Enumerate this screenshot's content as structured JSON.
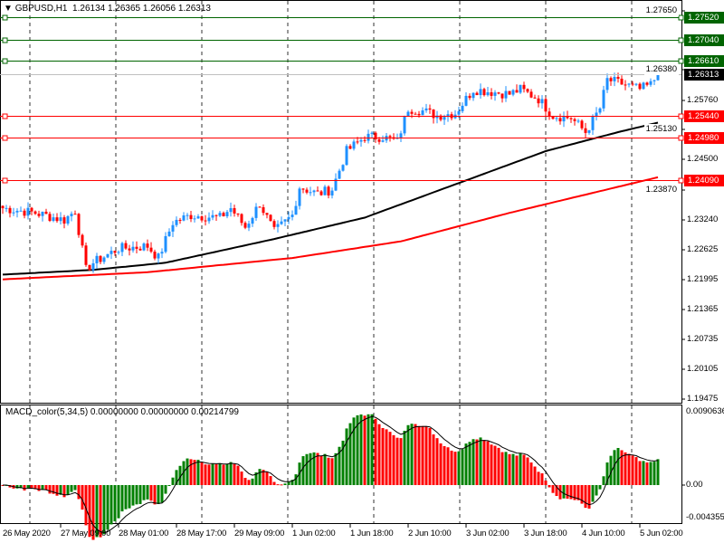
{
  "header": {
    "symbol": "GBPUSD,H1",
    "ohlc": "1.26134 1.26365 1.26056 1.26313"
  },
  "indicator": {
    "label": "MACD_color(5,34,5) 0.00000000 0.00000000 0.00214799",
    "max_label": "0.0090636",
    "zero_label": "0.00",
    "min_label": "-0.004355"
  },
  "price_axis": [
    "1.27650",
    "1.26380",
    "1.25760",
    "1.25130",
    "1.24500",
    "1.23870",
    "1.23240",
    "1.22625",
    "1.21995",
    "1.21365",
    "1.20735",
    "1.20105",
    "1.19475"
  ],
  "levels": [
    {
      "price": "1.27520",
      "color": "#006400"
    },
    {
      "price": "1.27040",
      "color": "#006400"
    },
    {
      "price": "1.26610",
      "color": "#006400"
    },
    {
      "price": "1.25440",
      "color": "#ff0000"
    },
    {
      "price": "1.24980",
      "color": "#ff0000"
    },
    {
      "price": "1.24090",
      "color": "#ff0000"
    }
  ],
  "current_price": "1.26313",
  "time_axis": [
    "26 May 2020",
    "27 May 09:00",
    "28 May 01:00",
    "28 May 17:00",
    "29 May 09:00",
    "1 Jun 02:00",
    "1 Jun 18:00",
    "2 Jun 10:00",
    "3 Jun 02:00",
    "3 Jun 18:00",
    "4 Jun 10:00",
    "5 Jun 02:00"
  ],
  "colors": {
    "bull": "#1e90ff",
    "bear": "#ff0000",
    "ma_fast": "#000000",
    "ma_slow": "#ff0000",
    "hist_up": "#008000",
    "hist_down": "#ff0000"
  },
  "chart_data": {
    "type": "candlestick",
    "close_keyframes": [
      [
        0,
        1.235
      ],
      [
        9,
        1.234
      ],
      [
        17,
        1.2325
      ],
      [
        20,
        1.2345
      ],
      [
        23,
        1.222
      ],
      [
        25,
        1.2235
      ],
      [
        32,
        1.2265
      ],
      [
        40,
        1.227
      ],
      [
        43,
        1.2245
      ],
      [
        47,
        1.232
      ],
      [
        52,
        1.2335
      ],
      [
        60,
        1.233
      ],
      [
        63,
        1.235
      ],
      [
        67,
        1.231
      ],
      [
        71,
        1.236
      ],
      [
        75,
        1.23
      ],
      [
        80,
        1.2335
      ],
      [
        82,
        1.2395
      ],
      [
        87,
        1.238
      ],
      [
        91,
        1.239
      ],
      [
        95,
        1.247
      ],
      [
        100,
        1.25
      ],
      [
        105,
        1.25
      ],
      [
        109,
        1.249
      ],
      [
        112,
        1.256
      ],
      [
        116,
        1.2555
      ],
      [
        120,
        1.2545
      ],
      [
        125,
        1.255
      ],
      [
        130,
        1.26
      ],
      [
        135,
        1.2595
      ],
      [
        140,
        1.259
      ],
      [
        143,
        1.26
      ],
      [
        148,
        1.258
      ],
      [
        152,
        1.2545
      ],
      [
        157,
        1.254
      ],
      [
        161,
        1.251
      ],
      [
        165,
        1.256
      ],
      [
        167,
        1.262
      ],
      [
        172,
        1.261
      ],
      [
        176,
        1.26
      ],
      [
        179,
        1.261
      ],
      [
        181,
        1.26313
      ]
    ],
    "ma_fast_keyframes": [
      [
        0,
        1.221
      ],
      [
        25,
        1.222
      ],
      [
        45,
        1.2235
      ],
      [
        75,
        1.2285
      ],
      [
        100,
        1.233
      ],
      [
        125,
        1.24
      ],
      [
        150,
        1.247
      ],
      [
        170,
        1.251
      ],
      [
        181,
        1.253
      ]
    ],
    "ma_slow_keyframes": [
      [
        0,
        1.22
      ],
      [
        40,
        1.2215
      ],
      [
        80,
        1.2245
      ],
      [
        110,
        1.228
      ],
      [
        140,
        1.234
      ],
      [
        181,
        1.2415
      ]
    ]
  }
}
